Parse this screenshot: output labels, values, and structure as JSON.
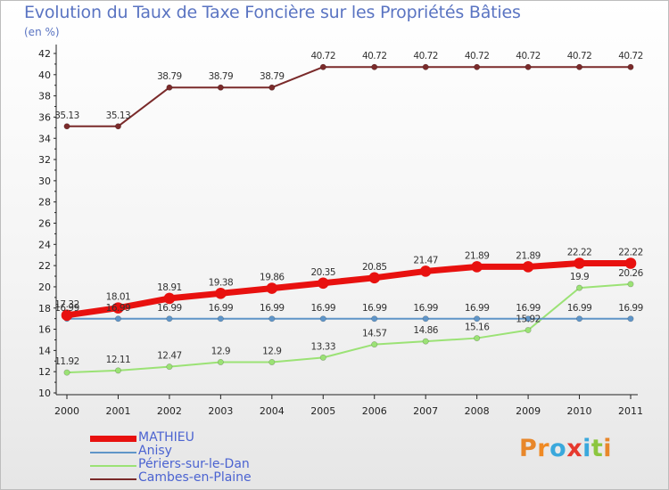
{
  "title": "Evolution du Taux de Taxe Foncière sur les Propriétés Bâties",
  "subtitle": "(en %)",
  "logo": {
    "letters": [
      "P",
      "r",
      "o",
      "x",
      "i",
      "t",
      "i"
    ],
    "colors": [
      "#e8872a",
      "#f08a24",
      "#3aa8dc",
      "#e6392e",
      "#3aa8dc",
      "#8cc63f",
      "#e8872a"
    ]
  },
  "chart_data": {
    "type": "line",
    "x": [
      "2000",
      "2001",
      "2002",
      "2003",
      "2004",
      "2005",
      "2006",
      "2007",
      "2008",
      "2009",
      "2010",
      "2011"
    ],
    "ylim": [
      10,
      42
    ],
    "yticks": [
      "10",
      "12",
      "14",
      "16",
      "18",
      "20",
      "22",
      "24",
      "26",
      "28",
      "30",
      "32",
      "34",
      "36",
      "38",
      "40",
      "42"
    ],
    "grid": false,
    "legend_position": "bottom-left",
    "series": [
      {
        "name": "MATHIEU",
        "color": "#e8110f",
        "values": [
          17.32,
          18.01,
          18.91,
          19.38,
          19.86,
          20.35,
          20.85,
          21.47,
          21.89,
          21.89,
          22.22,
          22.22
        ],
        "labels": [
          "17.32",
          "18.01",
          "18.91",
          "19.38",
          "19.86",
          "20.35",
          "20.85",
          "21.47",
          "21.89",
          "21.89",
          "22.22",
          "22.22"
        ]
      },
      {
        "name": "Anisy",
        "color": "#5f95c8",
        "values": [
          16.99,
          16.99,
          16.99,
          16.99,
          16.99,
          16.99,
          16.99,
          16.99,
          16.99,
          16.99,
          16.99,
          16.99
        ],
        "labels": [
          "16.99",
          "16.99",
          "16.99",
          "16.99",
          "16.99",
          "16.99",
          "16.99",
          "16.99",
          "16.99",
          "16.99",
          "16.99",
          "16.99"
        ]
      },
      {
        "name": "Périers-sur-le-Dan",
        "color": "#9be275",
        "values": [
          11.92,
          12.11,
          12.47,
          12.9,
          12.9,
          13.33,
          14.57,
          14.86,
          15.16,
          15.92,
          19.9,
          20.26
        ],
        "labels": [
          "11.92",
          "12.11",
          "12.47",
          "12.9",
          "12.9",
          "13.33",
          "14.57",
          "14.86",
          "15.16",
          "15.92",
          "19.9",
          "20.26"
        ]
      },
      {
        "name": "Cambes-en-Plaine",
        "color": "#7a2a2a",
        "values": [
          35.13,
          35.13,
          38.79,
          38.79,
          38.79,
          40.72,
          40.72,
          40.72,
          40.72,
          40.72,
          40.72,
          40.72
        ],
        "labels": [
          "35.13",
          "35.13",
          "38.79",
          "38.79",
          "38.79",
          "40.72",
          "40.72",
          "40.72",
          "40.72",
          "40.72",
          "40.72",
          "40.72"
        ]
      }
    ]
  }
}
